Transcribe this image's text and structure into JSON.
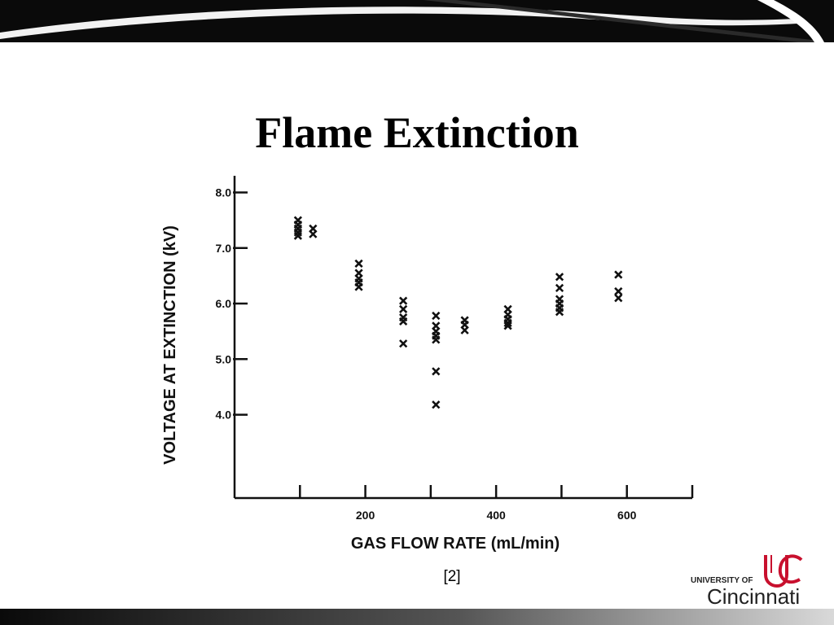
{
  "slide": {
    "title": "Flame Extinction",
    "citation": "[2]"
  },
  "logo": {
    "small_text": "UNIVERSITY OF",
    "big_text": "Cincinnati",
    "brand_color": "#c8102e"
  },
  "colors": {
    "banner": "#0a0a0a",
    "banner_stripe": "#ffffff"
  },
  "chart_data": {
    "type": "scatter",
    "xlabel": "GAS FLOW RATE (mL/min)",
    "ylabel": "VOLTAGE AT EXTINCTION (kV)",
    "xlim": [
      0,
      700
    ],
    "ylim": [
      2.5,
      8.3
    ],
    "x_ticks": [
      100,
      200,
      300,
      400,
      500,
      600,
      700
    ],
    "x_tick_labels": [
      "",
      "200",
      "",
      "400",
      "",
      "600",
      ""
    ],
    "y_ticks": [
      4.0,
      5.0,
      6.0,
      7.0,
      8.0
    ],
    "y_tick_labels": [
      "4.0",
      "5.0",
      "6.0",
      "7.0",
      "8.0"
    ],
    "marker": "x",
    "points": [
      {
        "x": 97,
        "y": 7.5
      },
      {
        "x": 97,
        "y": 7.42
      },
      {
        "x": 97,
        "y": 7.35
      },
      {
        "x": 97,
        "y": 7.28
      },
      {
        "x": 97,
        "y": 7.22
      },
      {
        "x": 120,
        "y": 7.35
      },
      {
        "x": 120,
        "y": 7.25
      },
      {
        "x": 190,
        "y": 6.72
      },
      {
        "x": 190,
        "y": 6.55
      },
      {
        "x": 190,
        "y": 6.45
      },
      {
        "x": 190,
        "y": 6.38
      },
      {
        "x": 190,
        "y": 6.3
      },
      {
        "x": 258,
        "y": 6.05
      },
      {
        "x": 258,
        "y": 5.9
      },
      {
        "x": 258,
        "y": 5.75
      },
      {
        "x": 258,
        "y": 5.68
      },
      {
        "x": 258,
        "y": 5.28
      },
      {
        "x": 308,
        "y": 5.78
      },
      {
        "x": 308,
        "y": 5.6
      },
      {
        "x": 308,
        "y": 5.5
      },
      {
        "x": 308,
        "y": 5.42
      },
      {
        "x": 308,
        "y": 5.35
      },
      {
        "x": 308,
        "y": 4.78
      },
      {
        "x": 308,
        "y": 4.18
      },
      {
        "x": 352,
        "y": 5.7
      },
      {
        "x": 352,
        "y": 5.62
      },
      {
        "x": 352,
        "y": 5.52
      },
      {
        "x": 418,
        "y": 5.9
      },
      {
        "x": 418,
        "y": 5.8
      },
      {
        "x": 418,
        "y": 5.72
      },
      {
        "x": 418,
        "y": 5.65
      },
      {
        "x": 418,
        "y": 5.6
      },
      {
        "x": 497,
        "y": 6.48
      },
      {
        "x": 497,
        "y": 6.28
      },
      {
        "x": 497,
        "y": 6.08
      },
      {
        "x": 497,
        "y": 6.0
      },
      {
        "x": 497,
        "y": 5.92
      },
      {
        "x": 497,
        "y": 5.85
      },
      {
        "x": 587,
        "y": 6.52
      },
      {
        "x": 587,
        "y": 6.22
      },
      {
        "x": 587,
        "y": 6.1
      }
    ]
  }
}
